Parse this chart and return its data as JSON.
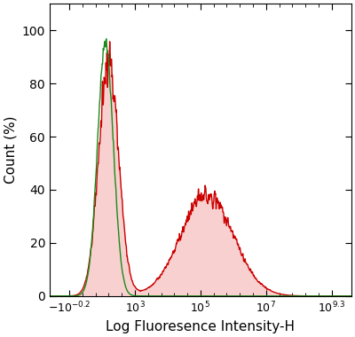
{
  "xlabel": "Log Fluoresence Intensity-H",
  "ylabel": "Count (%)",
  "ylim": [
    0,
    110
  ],
  "yticks": [
    0,
    20,
    40,
    60,
    80,
    100
  ],
  "xtick_positions": [
    0,
    1,
    2,
    3,
    4
  ],
  "green_color": "#1a8a1a",
  "red_color": "#cc0000",
  "fill_color": "#f8d0d0",
  "linewidth": 1.0,
  "green_peak_x": 0.55,
  "green_std": 0.12,
  "red_peak1_x": 0.6,
  "red_std1": 0.15,
  "red_peak2_x": 2.1,
  "red_std2": 0.4,
  "noise_amplitude": 8,
  "seed": 7
}
